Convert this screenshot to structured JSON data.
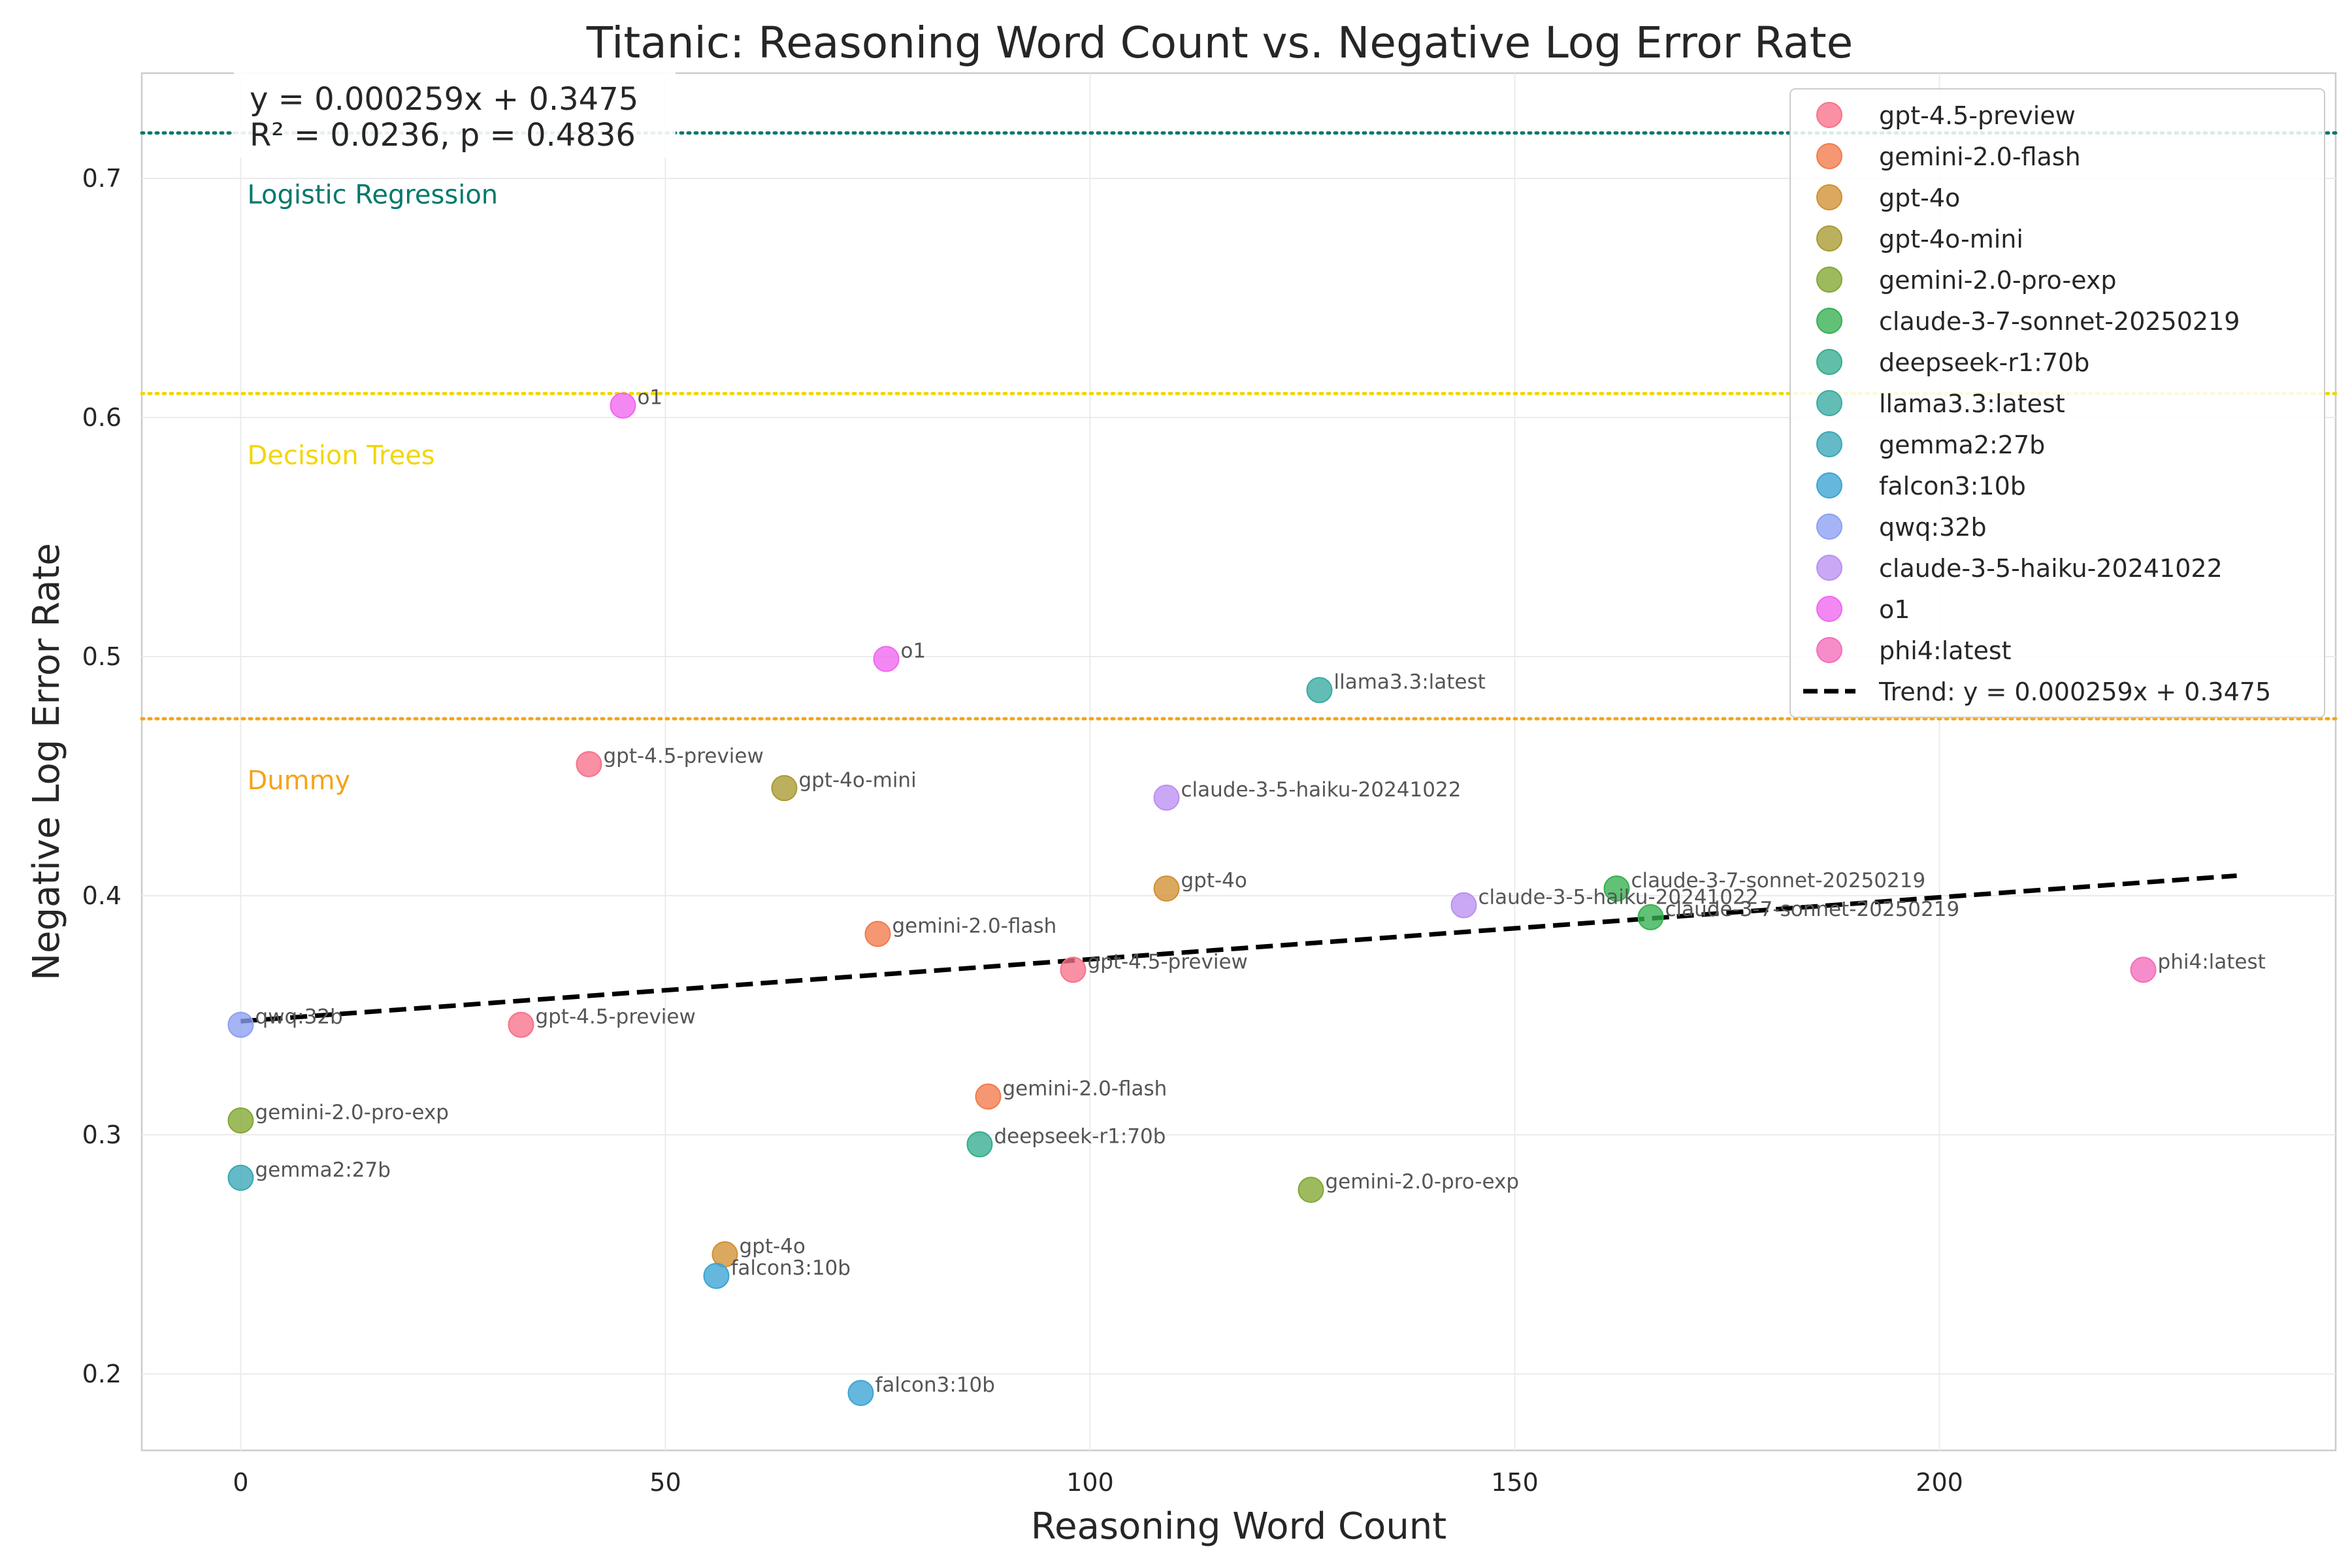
{
  "chart_data": {
    "type": "scatter",
    "title": "Titanic: Reasoning Word Count vs. Negative Log Error Rate",
    "xlabel": "Reasoning Word Count",
    "ylabel": "Negative Log Error Rate",
    "xlim": [
      -11.65,
      246.65
    ],
    "ylim": [
      0.168,
      0.744
    ],
    "xticks": [
      0,
      50,
      100,
      150,
      200
    ],
    "yticks": [
      0.2,
      0.3,
      0.4,
      0.5,
      0.6,
      0.7
    ],
    "ytick_labels": [
      "0.2",
      "0.3",
      "0.4",
      "0.5",
      "0.6",
      "0.7"
    ],
    "grid": true,
    "legend_position": "top-right",
    "reference_lines": [
      {
        "label": "Logistic Regression",
        "y": 0.719,
        "color": "#00796b"
      },
      {
        "label": "Decision Trees",
        "y": 0.61,
        "color": "#f2d600"
      },
      {
        "label": "Dummy",
        "y": 0.474,
        "color": "#f5a31a"
      }
    ],
    "stats_box": {
      "line1": "y = 0.000259x + 0.3475",
      "line2": "R² = 0.0236, p = 0.4836"
    },
    "trend": {
      "label": "Trend: y = 0.000259x + 0.3475",
      "slope": 0.000259,
      "intercept": 0.3475,
      "x_range": [
        0,
        235
      ]
    },
    "series": [
      {
        "name": "gpt-4.5-preview",
        "color": "#f77189",
        "points": [
          {
            "x": 41,
            "y": 0.455
          },
          {
            "x": 98,
            "y": 0.369
          },
          {
            "x": 33,
            "y": 0.346
          }
        ]
      },
      {
        "name": "gemini-2.0-flash",
        "color": "#f17a4a",
        "points": [
          {
            "x": 75,
            "y": 0.384
          },
          {
            "x": 88,
            "y": 0.316
          }
        ]
      },
      {
        "name": "gpt-4o",
        "color": "#d18f32",
        "points": [
          {
            "x": 109,
            "y": 0.403
          },
          {
            "x": 57,
            "y": 0.25
          }
        ]
      },
      {
        "name": "gpt-4o-mini",
        "color": "#a89a31",
        "points": [
          {
            "x": 64,
            "y": 0.445
          }
        ]
      },
      {
        "name": "gemini-2.0-pro-exp",
        "color": "#82a732",
        "points": [
          {
            "x": 0,
            "y": 0.306
          },
          {
            "x": 126,
            "y": 0.277
          }
        ]
      },
      {
        "name": "claude-3-7-sonnet-20250219",
        "color": "#34b04f",
        "points": [
          {
            "x": 162,
            "y": 0.403
          },
          {
            "x": 166,
            "y": 0.391
          }
        ]
      },
      {
        "name": "deepseek-r1:70b",
        "color": "#35ac8e",
        "points": [
          {
            "x": 87,
            "y": 0.296
          }
        ]
      },
      {
        "name": "llama3.3:latest",
        "color": "#37aaa2",
        "points": [
          {
            "x": 127,
            "y": 0.486
          }
        ]
      },
      {
        "name": "gemma2:27b",
        "color": "#39a7b6",
        "points": [
          {
            "x": 0,
            "y": 0.282
          }
        ]
      },
      {
        "name": "falcon3:10b",
        "color": "#3ba3d4",
        "points": [
          {
            "x": 56,
            "y": 0.241
          },
          {
            "x": 73,
            "y": 0.192
          }
        ]
      },
      {
        "name": "qwq:32b",
        "color": "#8c9ff2",
        "points": [
          {
            "x": 0,
            "y": 0.346
          }
        ]
      },
      {
        "name": "claude-3-5-haiku-20241022",
        "color": "#bb8ff2",
        "points": [
          {
            "x": 109,
            "y": 0.441
          },
          {
            "x": 144,
            "y": 0.396
          }
        ]
      },
      {
        "name": "o1",
        "color": "#f166f0",
        "points": [
          {
            "x": 45,
            "y": 0.605
          },
          {
            "x": 76,
            "y": 0.499
          }
        ]
      },
      {
        "name": "phi4:latest",
        "color": "#f56cbb",
        "points": [
          {
            "x": 224,
            "y": 0.369
          }
        ]
      }
    ]
  }
}
